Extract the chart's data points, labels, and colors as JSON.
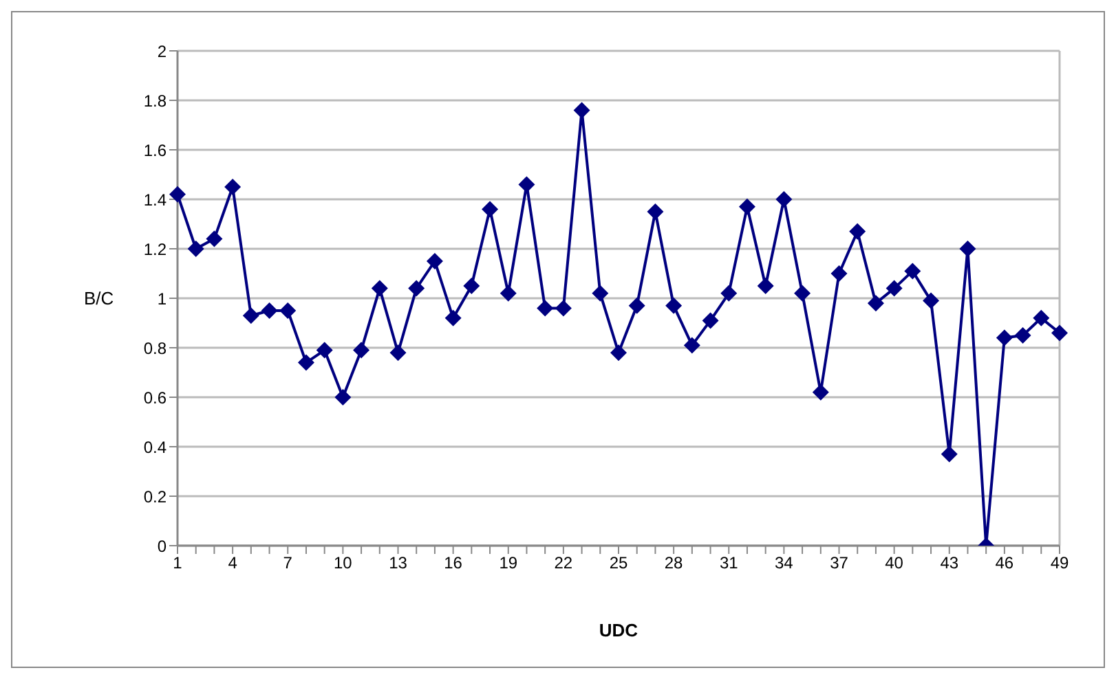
{
  "chart_data": {
    "type": "line",
    "xlabel": "UDC",
    "ylabel": "B/C",
    "categories": [
      "1",
      null,
      null,
      "4",
      null,
      null,
      "7",
      null,
      null,
      "10",
      null,
      null,
      "13",
      null,
      null,
      "16",
      null,
      null,
      "19",
      null,
      null,
      "22",
      null,
      null,
      "25",
      null,
      null,
      "28",
      null,
      null,
      "31",
      null,
      null,
      "34",
      null,
      null,
      "37",
      null,
      null,
      "40",
      null,
      null,
      "43",
      null,
      null,
      "46",
      null,
      null,
      "49"
    ],
    "series": [
      {
        "color": "#000080",
        "values": [
          1.42,
          1.2,
          1.24,
          1.45,
          0.93,
          0.95,
          0.95,
          0.74,
          0.79,
          0.6,
          0.79,
          1.04,
          0.78,
          1.04,
          1.15,
          0.92,
          1.05,
          1.36,
          1.02,
          1.46,
          0.96,
          0.96,
          1.76,
          1.02,
          0.78,
          0.97,
          1.35,
          0.97,
          0.81,
          0.91,
          1.02,
          1.37,
          1.05,
          1.4,
          1.02,
          0.62,
          1.1,
          1.27,
          0.98,
          1.04,
          1.11,
          0.99,
          0.37,
          1.2,
          0,
          0.84,
          0.85,
          0.92,
          0.86
        ]
      }
    ],
    "ylim": [
      0,
      2
    ],
    "yticks": [
      0,
      0.2,
      0.4,
      0.6,
      0.8,
      1,
      1.2,
      1.4,
      1.6,
      1.8,
      2
    ],
    "grid": "y",
    "legend": false,
    "marker": "diamond",
    "line_style": "solid"
  }
}
